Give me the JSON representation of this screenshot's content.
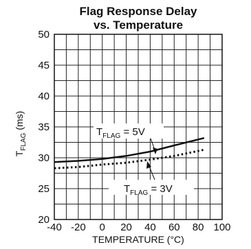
{
  "chart_data": {
    "type": "line",
    "title_line1": "Flag Response Delay",
    "title_line2": "vs. Temperature",
    "xlabel": "TEMPERATURE (°C)",
    "ylabel_main": "T",
    "ylabel_sub": "FLAG",
    "ylabel_unit": "(ms)",
    "xlim": [
      -40,
      100
    ],
    "ylim": [
      20,
      50
    ],
    "x_ticks": [
      "-40",
      "-20",
      "0",
      "20",
      "40",
      "60",
      "80",
      "100"
    ],
    "y_ticks": [
      "20",
      "25",
      "30",
      "35",
      "40",
      "45",
      "50"
    ],
    "grid": true,
    "series": [
      {
        "name": "T FLAG = 5V",
        "style": "solid",
        "x": [
          -40,
          -20,
          0,
          20,
          40,
          60,
          85
        ],
        "y": [
          29.3,
          29.5,
          29.8,
          30.3,
          31.0,
          32.0,
          33.2
        ]
      },
      {
        "name": "T FLAG = 3V",
        "style": "dotted",
        "x": [
          -40,
          -20,
          0,
          20,
          40,
          60,
          85
        ],
        "y": [
          28.3,
          28.5,
          28.9,
          29.2,
          29.7,
          30.3,
          31.3
        ]
      }
    ],
    "annotations": [
      {
        "main": "T",
        "sub": "FLAG",
        "rest": " = 5V"
      },
      {
        "main": "T",
        "sub": "FLAG",
        "rest": " = 3V"
      }
    ]
  }
}
